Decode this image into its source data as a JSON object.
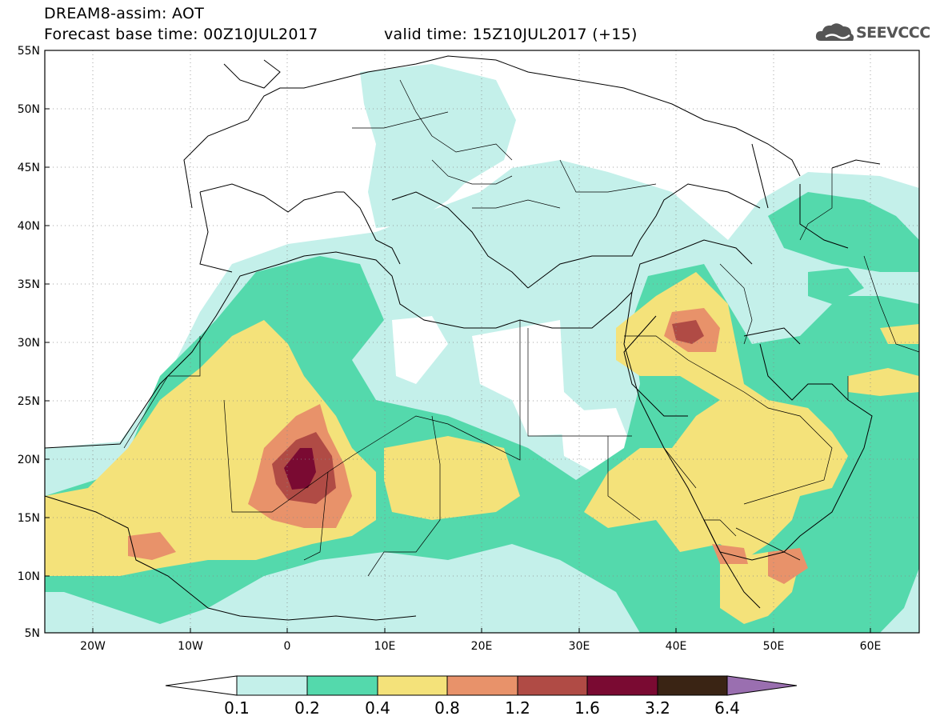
{
  "header": {
    "title_line1": "DREAM8-assim: AOT",
    "forecast_base": "Forecast base time: 00Z10JUL2017",
    "valid_time": "valid time: 15Z10JUL2017 (+15)",
    "logo_text": "SEEVCCC"
  },
  "map": {
    "lon_range": [
      -25,
      65
    ],
    "lat_range": [
      5,
      55
    ],
    "lat_ticks": [
      "55N",
      "50N",
      "45N",
      "40N",
      "35N",
      "30N",
      "25N",
      "20N",
      "15N",
      "10N",
      "5N"
    ],
    "lon_ticks": [
      "20W",
      "10W",
      "0",
      "10E",
      "20E",
      "30E",
      "40E",
      "50E",
      "60E"
    ],
    "grid": true
  },
  "colorbar": {
    "labels": [
      "0.1",
      "0.2",
      "0.4",
      "0.8",
      "1.2",
      "1.6",
      "3.2",
      "6.4"
    ],
    "colors": [
      "#ffffff",
      "#c4f0ea",
      "#54d9ac",
      "#f4e27a",
      "#e8926a",
      "#b04b45",
      "#7a0a32",
      "#3a2414",
      "#9a6fb0"
    ]
  },
  "colors": {
    "aot_0_1_0_2": "#c4f0ea",
    "aot_0_2_0_4": "#54d9ac",
    "aot_0_4_0_8": "#f4e27a",
    "aot_0_8_1_2": "#e8926a",
    "aot_1_2_1_6": "#b04b45",
    "aot_1_6_3_2": "#7a0a32"
  }
}
